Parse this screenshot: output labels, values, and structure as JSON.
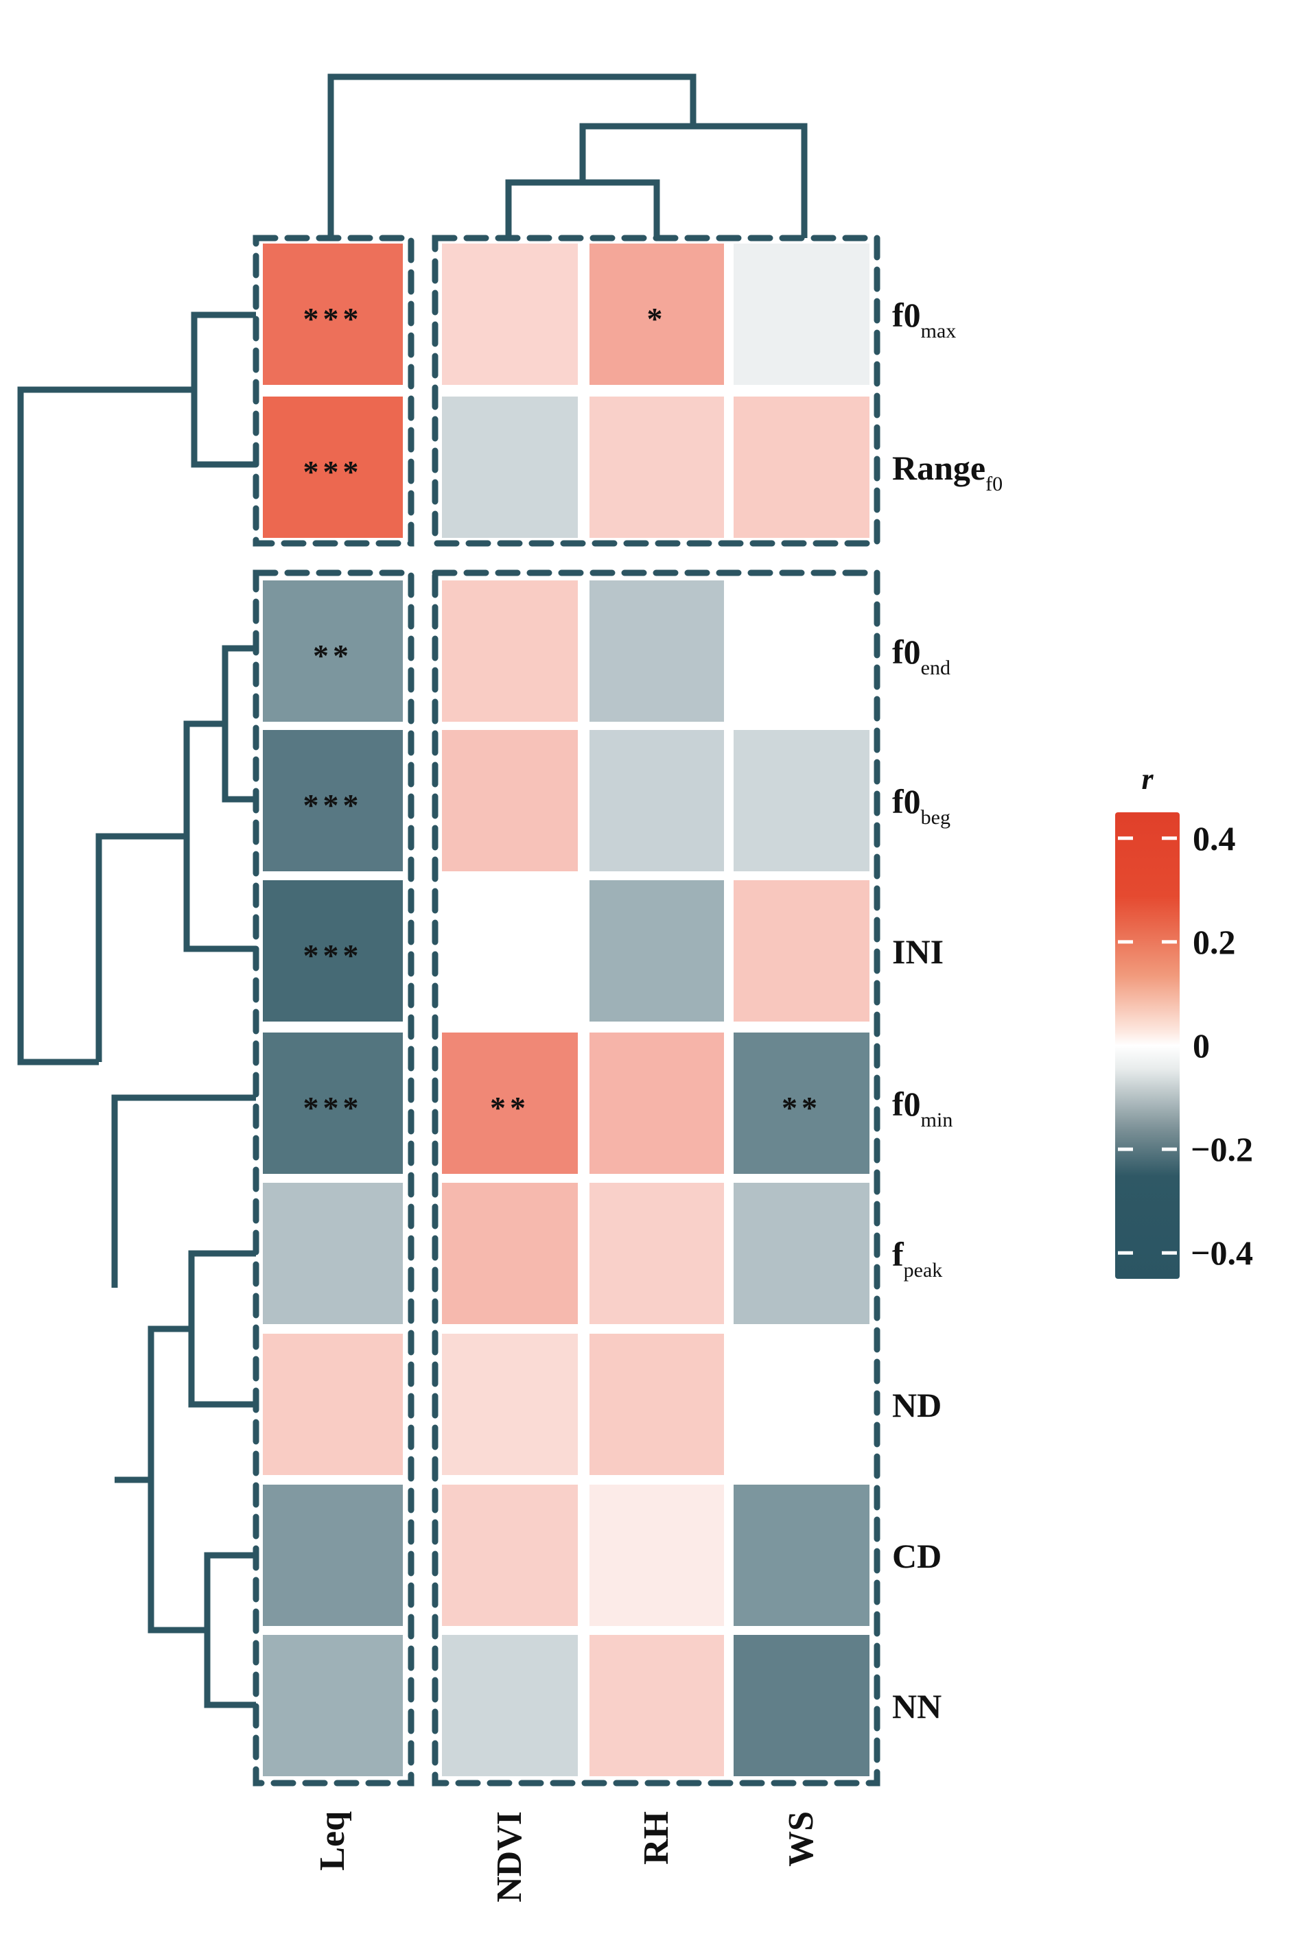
{
  "chart_data": {
    "type": "heatmap",
    "title": "",
    "legend_title": "r",
    "legend_ticks": [
      "0.4",
      "0.2",
      "0",
      "−0.2",
      "−0.4"
    ],
    "legend_tick_values": [
      0.4,
      0.2,
      0,
      -0.2,
      -0.4
    ],
    "legend_range": [
      -0.45,
      0.45
    ],
    "legend_placement": "right",
    "colors": {
      "positive": "#e34a2f",
      "zero": "#ffffff",
      "negative": "#2c5562",
      "dendrogram": "#2c5562",
      "box": "#2c5562"
    },
    "columns": [
      "Leq",
      "NDVI",
      "RH",
      "WS"
    ],
    "rows": [
      {
        "base": "f0",
        "sub": "max"
      },
      {
        "base": "Range",
        "sub": "f0"
      },
      {
        "base": "f0",
        "sub": "end"
      },
      {
        "base": "f0",
        "sub": "beg"
      },
      {
        "base": "INI",
        "sub": ""
      },
      {
        "base": "f0",
        "sub": "min"
      },
      {
        "base": "f",
        "sub": "peak"
      },
      {
        "base": "ND",
        "sub": ""
      },
      {
        "base": "CD",
        "sub": ""
      },
      {
        "base": "NN",
        "sub": ""
      }
    ],
    "values": [
      [
        0.3,
        0.07,
        0.17,
        -0.01
      ],
      [
        0.32,
        -0.06,
        0.08,
        0.09
      ],
      [
        -0.22,
        0.09,
        -0.1,
        0.0
      ],
      [
        -0.3,
        0.11,
        -0.07,
        -0.06
      ],
      [
        -0.34,
        0.0,
        -0.15,
        0.1
      ],
      [
        -0.31,
        0.24,
        0.14,
        -0.26
      ],
      [
        -0.11,
        0.13,
        0.08,
        -0.11
      ],
      [
        0.09,
        0.06,
        0.09,
        0.0
      ],
      [
        -0.21,
        0.08,
        0.03,
        -0.22
      ],
      [
        -0.15,
        -0.06,
        0.08,
        -0.28
      ]
    ],
    "significance": [
      [
        "***",
        "",
        "*",
        ""
      ],
      [
        "***",
        "",
        "",
        ""
      ],
      [
        "**",
        "",
        "",
        ""
      ],
      [
        "***",
        "",
        "",
        ""
      ],
      [
        "***",
        "",
        "",
        ""
      ],
      [
        "***",
        "**",
        "",
        "**"
      ],
      [
        "",
        "",
        "",
        ""
      ],
      [
        "",
        "",
        "",
        ""
      ],
      [
        "",
        "",
        "",
        ""
      ],
      [
        "",
        "",
        "",
        ""
      ]
    ],
    "row_groups": [
      [
        0,
        1
      ],
      [
        2,
        3,
        4,
        5,
        6,
        7,
        8,
        9
      ]
    ],
    "column_groups": [
      [
        0
      ],
      [
        1,
        2,
        3
      ]
    ]
  }
}
